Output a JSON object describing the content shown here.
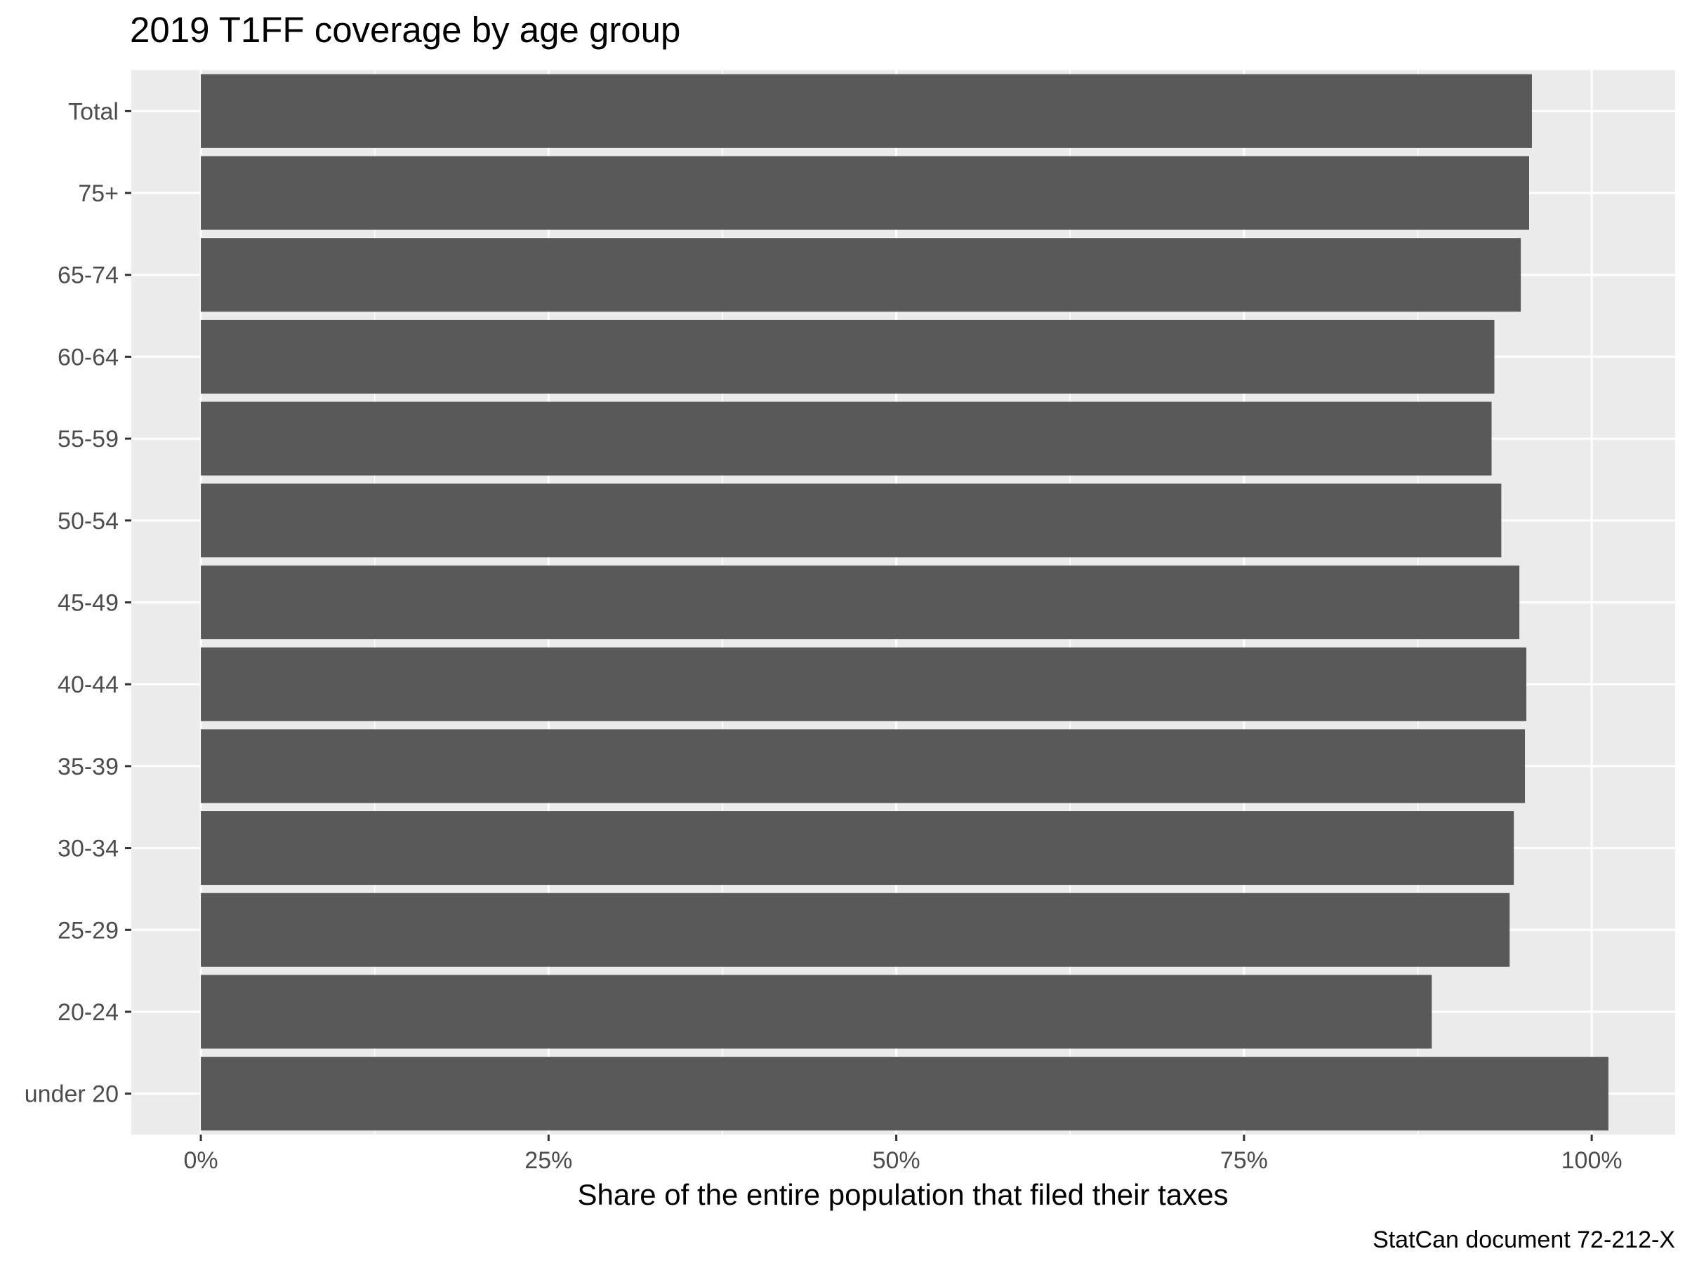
{
  "chart_data": {
    "type": "bar",
    "orientation": "horizontal",
    "title": "2019 T1FF coverage by age group",
    "xlabel": "Share of the entire population that filed their taxes",
    "ylabel": "",
    "caption": "StatCan document 72-212-X",
    "categories": [
      "Total",
      "75+",
      "65-74",
      "60-64",
      "55-59",
      "50-54",
      "45-49",
      "40-44",
      "35-39",
      "30-34",
      "25-29",
      "20-24",
      "under 20"
    ],
    "values": [
      0.957,
      0.955,
      0.949,
      0.93,
      0.928,
      0.935,
      0.948,
      0.953,
      0.952,
      0.944,
      0.941,
      0.885,
      1.012
    ],
    "xlim": [
      -0.05,
      1.06
    ],
    "xticks": [
      0,
      0.25,
      0.5,
      0.75,
      1.0
    ],
    "xtick_labels": [
      "0%",
      "25%",
      "50%",
      "75%",
      "100%"
    ],
    "grid": true,
    "colors": {
      "bar": "#595959",
      "panel": "#ebebeb",
      "grid": "#ffffff"
    }
  }
}
